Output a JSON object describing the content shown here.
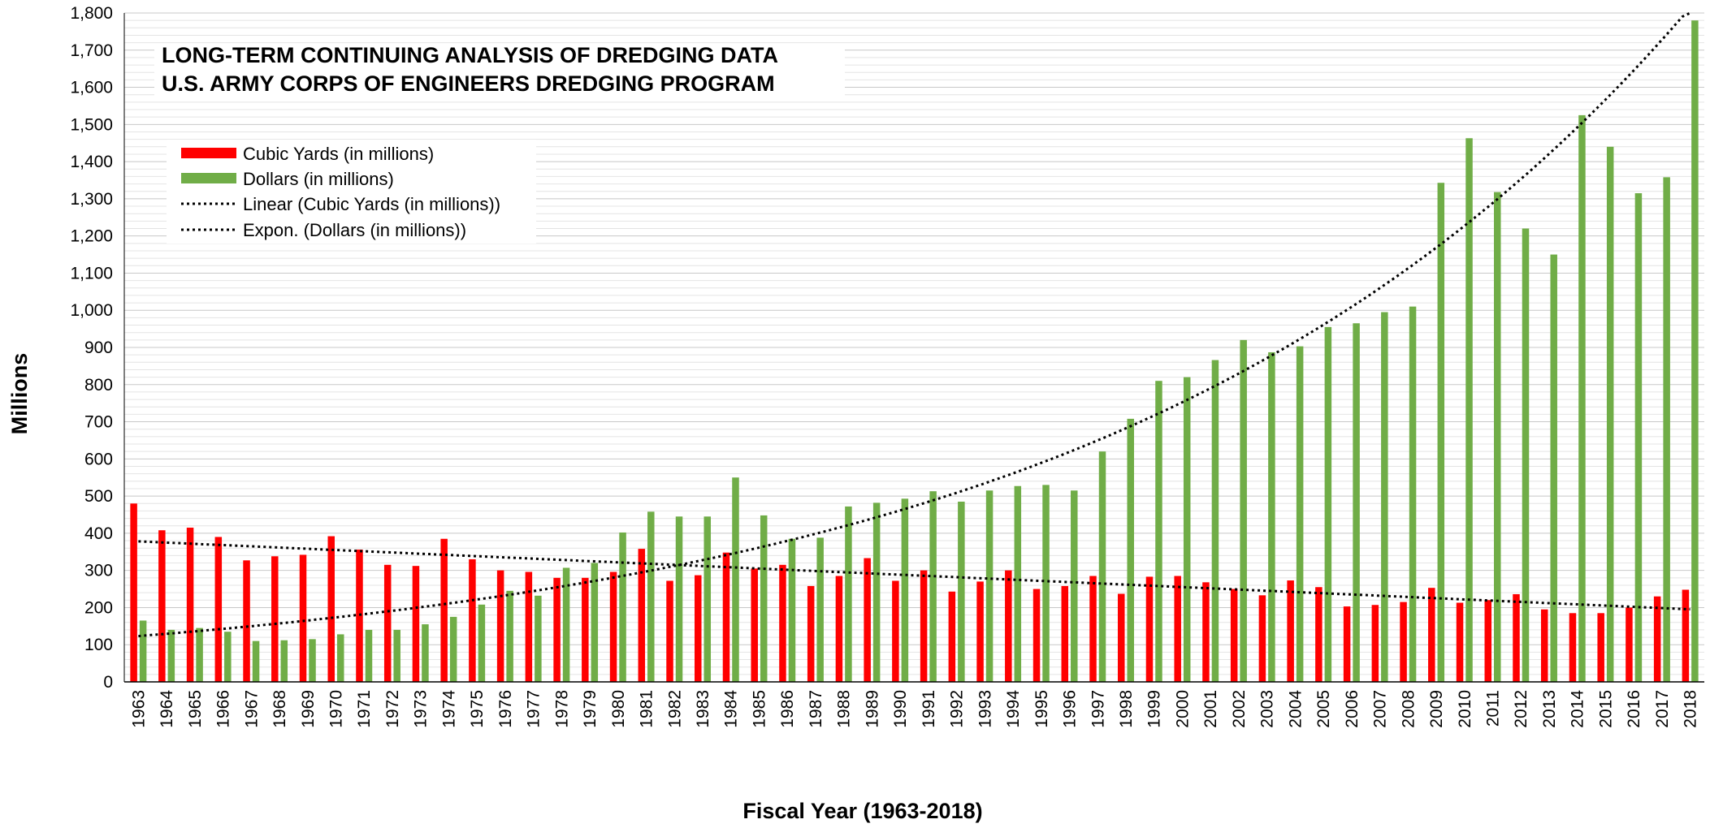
{
  "chart_data": {
    "type": "bar",
    "title": [
      "LONG-TERM CONTINUING ANALYSIS OF DREDGING DATA",
      "U.S. ARMY CORPS OF ENGINEERS DREDGING PROGRAM"
    ],
    "x_label": "Fiscal Year (1963-2018)",
    "y_label": "Millions",
    "categories": [
      "1963",
      "1964",
      "1965",
      "1966",
      "1967",
      "1968",
      "1969",
      "1970",
      "1971",
      "1972",
      "1973",
      "1974",
      "1975",
      "1976",
      "1977",
      "1978",
      "1979",
      "1980",
      "1981",
      "1982",
      "1983",
      "1984",
      "1985",
      "1986",
      "1987",
      "1988",
      "1989",
      "1990",
      "1991",
      "1992",
      "1993",
      "1994",
      "1995",
      "1996",
      "1997",
      "1998",
      "1999",
      "2000",
      "2001",
      "2002",
      "2003",
      "2004",
      "2005",
      "2006",
      "2007",
      "2008",
      "2009",
      "2010",
      "2011",
      "2012",
      "2013",
      "2014",
      "2015",
      "2016",
      "2017",
      "2018"
    ],
    "series": [
      {
        "name": "Cubic Yards (in millions)",
        "color": "#ff0000",
        "trendline": "linear",
        "trendline_name": "Linear (Cubic Yards (in millions))",
        "values": [
          480,
          408,
          415,
          390,
          327,
          338,
          342,
          392,
          356,
          315,
          312,
          385,
          330,
          300,
          296,
          280,
          280,
          296,
          358,
          272,
          287,
          348,
          305,
          315,
          258,
          285,
          333,
          272,
          300,
          243,
          270,
          300,
          250,
          258,
          285,
          237,
          283,
          285,
          268,
          250,
          233,
          273,
          255,
          203,
          207,
          215,
          253,
          213,
          220,
          236,
          195,
          185,
          185,
          200,
          230,
          248
        ]
      },
      {
        "name": "Dollars (in millions)",
        "color": "#70ad47",
        "trendline": "exponential",
        "trendline_name": "Expon. (Dollars (in millions))",
        "values": [
          165,
          140,
          145,
          135,
          110,
          112,
          115,
          128,
          140,
          140,
          155,
          175,
          208,
          245,
          232,
          307,
          320,
          402,
          458,
          445,
          445,
          550,
          448,
          385,
          388,
          472,
          482,
          493,
          513,
          485,
          515,
          527,
          530,
          515,
          620,
          708,
          810,
          820,
          866,
          920,
          887,
          903,
          955,
          965,
          995,
          1010,
          1343,
          1463,
          1318,
          1220,
          1150,
          1525,
          1440,
          1315,
          1358,
          1780
        ]
      }
    ],
    "ylim": [
      0,
      1800
    ],
    "yticks": [
      0,
      100,
      200,
      300,
      400,
      500,
      600,
      700,
      800,
      900,
      {
        "value": 1000,
        "label": "1,000"
      },
      {
        "value": 1100,
        "label": "1,100"
      },
      {
        "value": 1200,
        "label": "1,200"
      },
      {
        "value": 1300,
        "label": "1,300"
      },
      {
        "value": 1400,
        "label": "1,400"
      },
      {
        "value": 1500,
        "label": "1,500"
      },
      {
        "value": 1600,
        "label": "1,600"
      },
      {
        "value": 1700,
        "label": "1,700"
      },
      {
        "value": 1800,
        "label": "1,800"
      }
    ],
    "grid": true
  }
}
